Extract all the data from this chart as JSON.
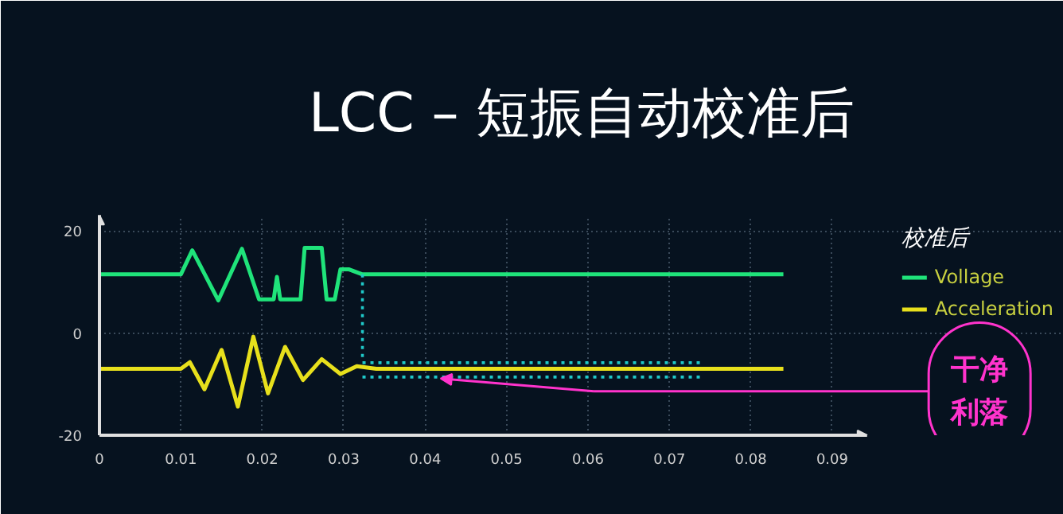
{
  "chart_data": {
    "type": "line",
    "title": "LCC – 短振自动校准后",
    "legend_title": "校准后",
    "legend": "top right",
    "grid": true,
    "line_style": "solid",
    "xlim": [
      0,
      0.094
    ],
    "xticks": [
      0,
      0.01,
      0.02,
      0.03,
      0.04,
      0.05,
      0.06,
      0.07,
      0.08,
      0.09
    ],
    "ylim": [
      -20,
      23
    ],
    "yticks": [
      -20,
      0,
      20
    ],
    "series": [
      {
        "name": "Vollage",
        "color": "#1fe37a",
        "x": [
          0,
          0.01,
          0.0114,
          0.0146,
          0.0175,
          0.0196,
          0.0214,
          0.0218,
          0.0222,
          0.0247,
          0.0252,
          0.0273,
          0.0279,
          0.0282,
          0.0289,
          0.0296,
          0.0306,
          0.0323,
          0.084
        ],
        "values": [
          11.5,
          11.5,
          16.2,
          6.4,
          16.5,
          6.6,
          6.6,
          11,
          6.6,
          6.6,
          16.7,
          16.7,
          6.6,
          6.6,
          6.6,
          12.5,
          12.5,
          11.5,
          11.5
        ]
      },
      {
        "name": "Acceleration",
        "color": "#e8e01c",
        "x": [
          0,
          0.01,
          0.0111,
          0.0129,
          0.015,
          0.017,
          0.0189,
          0.0207,
          0.0228,
          0.025,
          0.0273,
          0.0296,
          0.0316,
          0.034,
          0.084
        ],
        "values": [
          -7,
          -7,
          -5.7,
          -11,
          -3.3,
          -14.4,
          -0.7,
          -11.8,
          -2.7,
          -9.2,
          -5.1,
          -8,
          -6.5,
          -7,
          -7
        ]
      },
      {
        "color": "#1fc8c8",
        "line_style": "dotted",
        "x": [
          0.0323,
          0.0323
        ],
        "values": [
          11.5,
          -5.5
        ]
      },
      {
        "color": "#1fc8c8",
        "line_style": "dotted",
        "x": [
          0.0323,
          0.074
        ],
        "values": [
          -5.8,
          -5.8
        ]
      },
      {
        "color": "#1fc8c8",
        "line_style": "dotted",
        "x": [
          0.0323,
          0.074
        ],
        "values": [
          -8.6,
          -8.6
        ]
      }
    ],
    "annotations": [
      "干净利落"
    ]
  }
}
